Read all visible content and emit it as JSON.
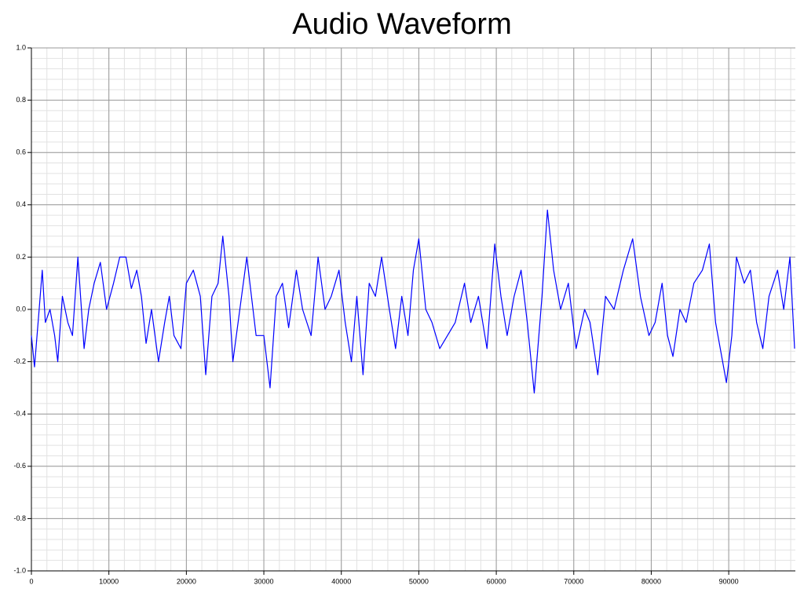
{
  "chart_data": {
    "type": "line",
    "title": "Audio Waveform",
    "x": [
      0,
      400,
      1000,
      1400,
      1800,
      2400,
      3000,
      3400,
      4000,
      4700,
      5300,
      6000,
      6800,
      7400,
      8100,
      8900,
      9700,
      10600,
      11400,
      12200,
      12900,
      13600,
      14200,
      14800,
      15500,
      16400,
      17200,
      17800,
      18400,
      19300,
      20000,
      20900,
      21800,
      22500,
      23300,
      24100,
      24700,
      25500,
      26000,
      26900,
      27800,
      28400,
      29000,
      30000,
      30800,
      31600,
      32400,
      33200,
      34200,
      35000,
      36100,
      37000,
      37900,
      38700,
      39700,
      40500,
      41300,
      42000,
      42800,
      43600,
      44400,
      45200,
      46200,
      47000,
      47800,
      48600,
      49300,
      50000,
      50900,
      51700,
      52700,
      53700,
      54700,
      55900,
      56700,
      57700,
      58800,
      59800,
      60600,
      61400,
      62300,
      63200,
      64000,
      64900,
      65900,
      66600,
      67400,
      68300,
      69300,
      70300,
      71400,
      72100,
      73100,
      74100,
      75200,
      76400,
      77600,
      78600,
      79700,
      80500,
      81400,
      82100,
      82800,
      83700,
      84500,
      85500,
      86600,
      87500,
      88300,
      89700,
      90400,
      91000,
      92000,
      92800,
      93600,
      94400,
      95200,
      96300,
      97100,
      97900,
      98500
    ],
    "series": [
      {
        "color": "#0000ff",
        "values": [
          -0.1,
          -0.22,
          0.0,
          0.15,
          -0.05,
          0.0,
          -0.1,
          -0.2,
          0.05,
          -0.05,
          -0.1,
          0.2,
          -0.15,
          0.0,
          0.1,
          0.18,
          0.0,
          0.1,
          0.2,
          0.2,
          0.08,
          0.15,
          0.05,
          -0.13,
          0.0,
          -0.2,
          -0.05,
          0.05,
          -0.1,
          -0.15,
          0.1,
          0.15,
          0.05,
          -0.25,
          0.05,
          0.1,
          0.28,
          0.05,
          -0.2,
          0.0,
          0.2,
          0.05,
          -0.1,
          -0.1,
          -0.3,
          0.05,
          0.1,
          -0.07,
          0.15,
          0.0,
          -0.1,
          0.2,
          0.0,
          0.05,
          0.15,
          -0.05,
          -0.2,
          0.05,
          -0.25,
          0.1,
          0.05,
          0.2,
          0.0,
          -0.15,
          0.05,
          -0.1,
          0.15,
          0.27,
          0.0,
          -0.05,
          -0.15,
          -0.1,
          -0.05,
          0.1,
          -0.05,
          0.05,
          -0.15,
          0.25,
          0.05,
          -0.1,
          0.05,
          0.15,
          -0.05,
          -0.32,
          0.05,
          0.38,
          0.15,
          0.0,
          0.1,
          -0.15,
          0.0,
          -0.05,
          -0.25,
          0.05,
          0.0,
          0.15,
          0.27,
          0.05,
          -0.1,
          -0.05,
          0.1,
          -0.1,
          -0.18,
          0.0,
          -0.05,
          0.1,
          0.15,
          0.25,
          -0.05,
          -0.28,
          -0.1,
          0.2,
          0.1,
          0.15,
          -0.05,
          -0.15,
          0.05,
          0.15,
          0.0,
          0.2,
          -0.15
        ]
      }
    ],
    "xlim": [
      0,
      98600
    ],
    "ylim": [
      -1,
      1
    ],
    "xticks": [
      0,
      10000,
      20000,
      30000,
      40000,
      50000,
      60000,
      70000,
      80000,
      90000
    ],
    "yticks": [
      {
        "value": -1,
        "label": "-1.0"
      },
      -0.8,
      -0.6,
      -0.4,
      -0.2,
      {
        "value": 0,
        "label": "0.0"
      },
      0.2,
      0.4,
      0.6,
      0.8,
      {
        "value": 1,
        "label": "1.0"
      }
    ],
    "grid": true,
    "minor_grid": 5
  }
}
